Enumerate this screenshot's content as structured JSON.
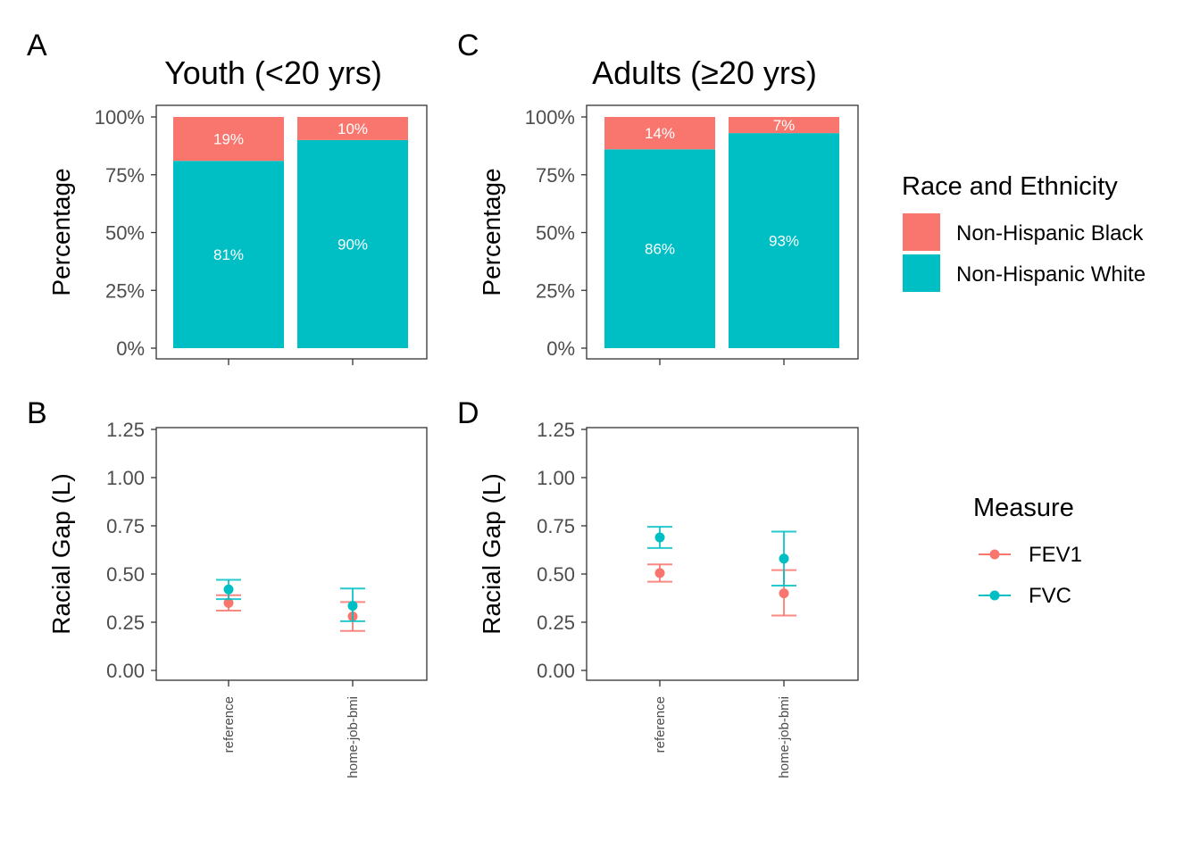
{
  "colors": {
    "black": "#F8766D",
    "white": "#00BFC4",
    "fev1": "#F8766D",
    "fvc": "#00BFC4"
  },
  "chart_data": [
    {
      "id": "A",
      "type": "bar",
      "stacked": true,
      "tag": "A",
      "title": "Youth (<20 yrs)",
      "ylabel": "Percentage",
      "ylim": [
        0,
        1
      ],
      "yticks": [
        "0%",
        "25%",
        "50%",
        "75%",
        "100%"
      ],
      "categories": [
        "reference",
        "home-job-bmi"
      ],
      "series": [
        {
          "name": "Non-Hispanic White",
          "values": [
            0.81,
            0.9
          ],
          "labels": [
            "81%",
            "90%"
          ]
        },
        {
          "name": "Non-Hispanic Black",
          "values": [
            0.19,
            0.1
          ],
          "labels": [
            "19%",
            "10%"
          ]
        }
      ]
    },
    {
      "id": "C",
      "type": "bar",
      "stacked": true,
      "tag": "C",
      "title": "Adults (≥20 yrs)",
      "ylabel": "Percentage",
      "ylim": [
        0,
        1
      ],
      "yticks": [
        "0%",
        "25%",
        "50%",
        "75%",
        "100%"
      ],
      "categories": [
        "reference",
        "home-job-bmi"
      ],
      "series": [
        {
          "name": "Non-Hispanic White",
          "values": [
            0.86,
            0.93
          ],
          "labels": [
            "86%",
            "93%"
          ]
        },
        {
          "name": "Non-Hispanic Black",
          "values": [
            0.14,
            0.07
          ],
          "labels": [
            "14%",
            "7%"
          ]
        }
      ]
    },
    {
      "id": "B",
      "type": "scatter",
      "tag": "B",
      "ylabel": "Racial Gap (L)",
      "ylim": [
        0,
        1.25
      ],
      "yticks": [
        "0.00",
        "0.25",
        "0.50",
        "0.75",
        "1.00",
        "1.25"
      ],
      "categories": [
        "reference",
        "home-job-bmi"
      ],
      "series": [
        {
          "name": "FEV1",
          "values": [
            0.35,
            0.28
          ],
          "lower": [
            0.31,
            0.205
          ],
          "upper": [
            0.39,
            0.355
          ]
        },
        {
          "name": "FVC",
          "values": [
            0.42,
            0.335
          ],
          "lower": [
            0.37,
            0.255
          ],
          "upper": [
            0.47,
            0.425
          ]
        }
      ]
    },
    {
      "id": "D",
      "type": "scatter",
      "tag": "D",
      "ylabel": "Racial Gap (L)",
      "ylim": [
        0,
        1.25
      ],
      "yticks": [
        "0.00",
        "0.25",
        "0.50",
        "0.75",
        "1.00",
        "1.25"
      ],
      "categories": [
        "reference",
        "home-job-bmi"
      ],
      "series": [
        {
          "name": "FEV1",
          "values": [
            0.505,
            0.4
          ],
          "lower": [
            0.46,
            0.285
          ],
          "upper": [
            0.55,
            0.52
          ]
        },
        {
          "name": "FVC",
          "values": [
            0.69,
            0.58
          ],
          "lower": [
            0.635,
            0.44
          ],
          "upper": [
            0.745,
            0.72
          ]
        }
      ]
    }
  ],
  "legends": {
    "race": {
      "title": "Race and Ethnicity",
      "items": [
        "Non-Hispanic Black",
        "Non-Hispanic White"
      ]
    },
    "measure": {
      "title": "Measure",
      "items": [
        "FEV1",
        "FVC"
      ]
    }
  }
}
